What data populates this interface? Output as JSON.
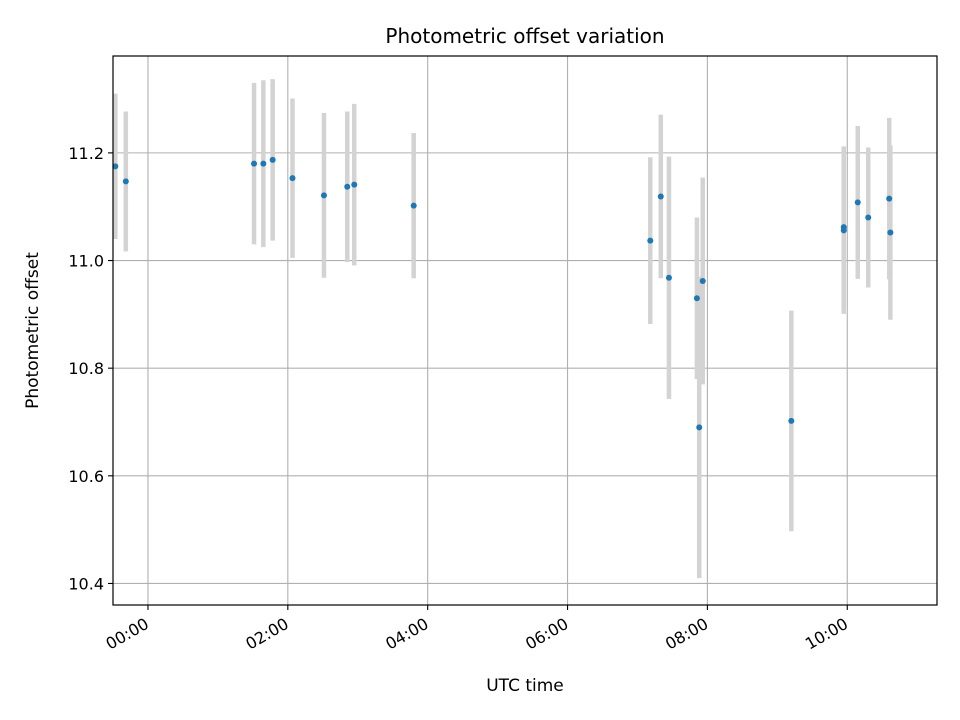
{
  "chart_data": {
    "type": "scatter",
    "title": "Photometric offset variation",
    "xlabel": "UTC time",
    "ylabel": "Photometric offset",
    "x_format": "HH:MM",
    "xlim": [
      "-00:30",
      "11:17"
    ],
    "ylim": [
      10.36,
      11.38
    ],
    "x_ticks": [
      "00:00",
      "02:00",
      "04:00",
      "06:00",
      "08:00",
      "10:00"
    ],
    "y_ticks": [
      10.4,
      10.6,
      10.8,
      11.0,
      11.2
    ],
    "y_tick_labels": [
      "10.4",
      "10.6",
      "10.8",
      "11.0",
      "11.2"
    ],
    "grid": true,
    "colors": {
      "point": "#1f77b4",
      "errorbar": "#d3d3d3",
      "grid": "#b0b0b0"
    },
    "points": [
      {
        "x": "-00:28",
        "y": 11.175,
        "err": 0.135
      },
      {
        "x": "-00:19",
        "y": 11.147,
        "err": 0.13
      },
      {
        "x": "01:31",
        "y": 11.18,
        "err": 0.15
      },
      {
        "x": "01:39",
        "y": 11.18,
        "err": 0.155
      },
      {
        "x": "01:47",
        "y": 11.187,
        "err": 0.15
      },
      {
        "x": "02:04",
        "y": 11.153,
        "err": 0.148
      },
      {
        "x": "02:31",
        "y": 11.121,
        "err": 0.153
      },
      {
        "x": "02:51",
        "y": 11.137,
        "err": 0.14
      },
      {
        "x": "02:57",
        "y": 11.141,
        "err": 0.15
      },
      {
        "x": "03:48",
        "y": 11.102,
        "err": 0.135
      },
      {
        "x": "07:11",
        "y": 11.037,
        "err": 0.155
      },
      {
        "x": "07:20",
        "y": 11.119,
        "err": 0.152
      },
      {
        "x": "07:27",
        "y": 10.968,
        "err": 0.225
      },
      {
        "x": "07:51",
        "y": 10.93,
        "err": 0.15
      },
      {
        "x": "07:53",
        "y": 10.69,
        "err": 0.28
      },
      {
        "x": "07:56",
        "y": 10.962,
        "err": 0.192
      },
      {
        "x": "09:12",
        "y": 10.702,
        "err": 0.205
      },
      {
        "x": "09:57",
        "y": 11.062,
        "err": 0.15
      },
      {
        "x": "09:57",
        "y": 11.056,
        "err": 0.155
      },
      {
        "x": "10:09",
        "y": 11.108,
        "err": 0.142
      },
      {
        "x": "10:18",
        "y": 11.08,
        "err": 0.13
      },
      {
        "x": "10:36",
        "y": 11.115,
        "err": 0.15
      },
      {
        "x": "10:37",
        "y": 11.052,
        "err": 0.162
      }
    ]
  }
}
